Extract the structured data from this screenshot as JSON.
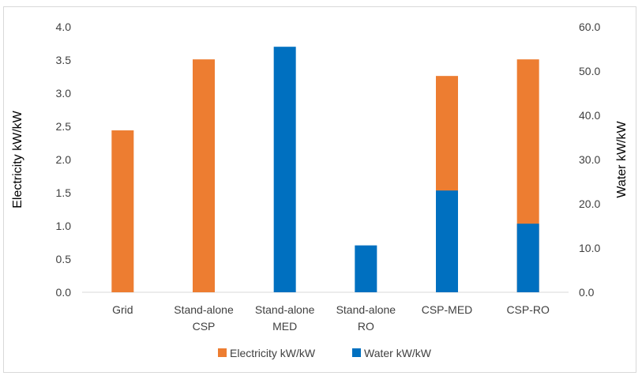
{
  "chart_data": {
    "type": "bar",
    "categories": [
      [
        "Grid"
      ],
      [
        "Stand-alone",
        "CSP"
      ],
      [
        "Stand-alone",
        "MED"
      ],
      [
        "Stand-alone",
        "RO"
      ],
      [
        "CSP-MED"
      ],
      [
        "CSP-RO"
      ]
    ],
    "y_left": {
      "label": "Electricity kW/kW",
      "min": 0,
      "max": 4.0,
      "step": 0.5,
      "ticks": [
        "0.0",
        "0.5",
        "1.0",
        "1.5",
        "2.0",
        "2.5",
        "3.0",
        "3.5",
        "4.0"
      ]
    },
    "y_right": {
      "label": "Water kW/kW",
      "min": 0,
      "max": 60.0,
      "step": 10,
      "ticks": [
        "0.0",
        "10.0",
        "20.0",
        "30.0",
        "40.0",
        "50.0",
        "60.0"
      ]
    },
    "series": [
      {
        "name": "Electricity kW/kW",
        "axis": "left",
        "color": "#ED7D31",
        "values": [
          2.44,
          3.51,
          null,
          null,
          3.26,
          3.51
        ]
      },
      {
        "name": "Water kW/kW",
        "axis": "right",
        "color": "#0070C0",
        "values": [
          null,
          null,
          55.5,
          10.6,
          23.0,
          15.5
        ]
      }
    ],
    "legend": "bottom",
    "grid": false
  }
}
